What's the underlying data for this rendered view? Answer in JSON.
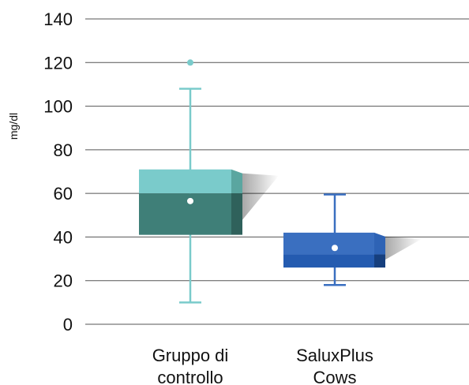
{
  "chart_data": {
    "type": "box",
    "ylabel": "mg/dl",
    "ylim": [
      0,
      140
    ],
    "yticks": [
      0,
      20,
      40,
      60,
      80,
      100,
      120,
      140
    ],
    "grid": true,
    "categories": [
      "Gruppo di\ncontrollo",
      "SaluxPlus\nCows"
    ],
    "boxes": [
      {
        "category_index": 0,
        "min": 10,
        "q1": 41,
        "median": 60,
        "q3": 71,
        "max": 108,
        "mean": 56.5,
        "outliers": [
          120
        ]
      },
      {
        "category_index": 1,
        "min": 18,
        "q1": 26,
        "median": 32,
        "q3": 42,
        "max": 59.5,
        "mean": 35,
        "outliers": []
      }
    ]
  },
  "colors": {
    "group1_upper": "#7acbcb",
    "group1_lower": "#3f7f78",
    "group1_side_upper": "#5aa6a0",
    "group1_side_lower": "#2f615b",
    "group1_whisker": "#7acbcb",
    "group2_upper": "#3a6fc0",
    "group2_lower": "#245bb0",
    "group2_side_upper": "#2e63b5",
    "group2_side_lower": "#163f7e",
    "group2_whisker": "#3a6fc0",
    "grid": "#555555"
  }
}
